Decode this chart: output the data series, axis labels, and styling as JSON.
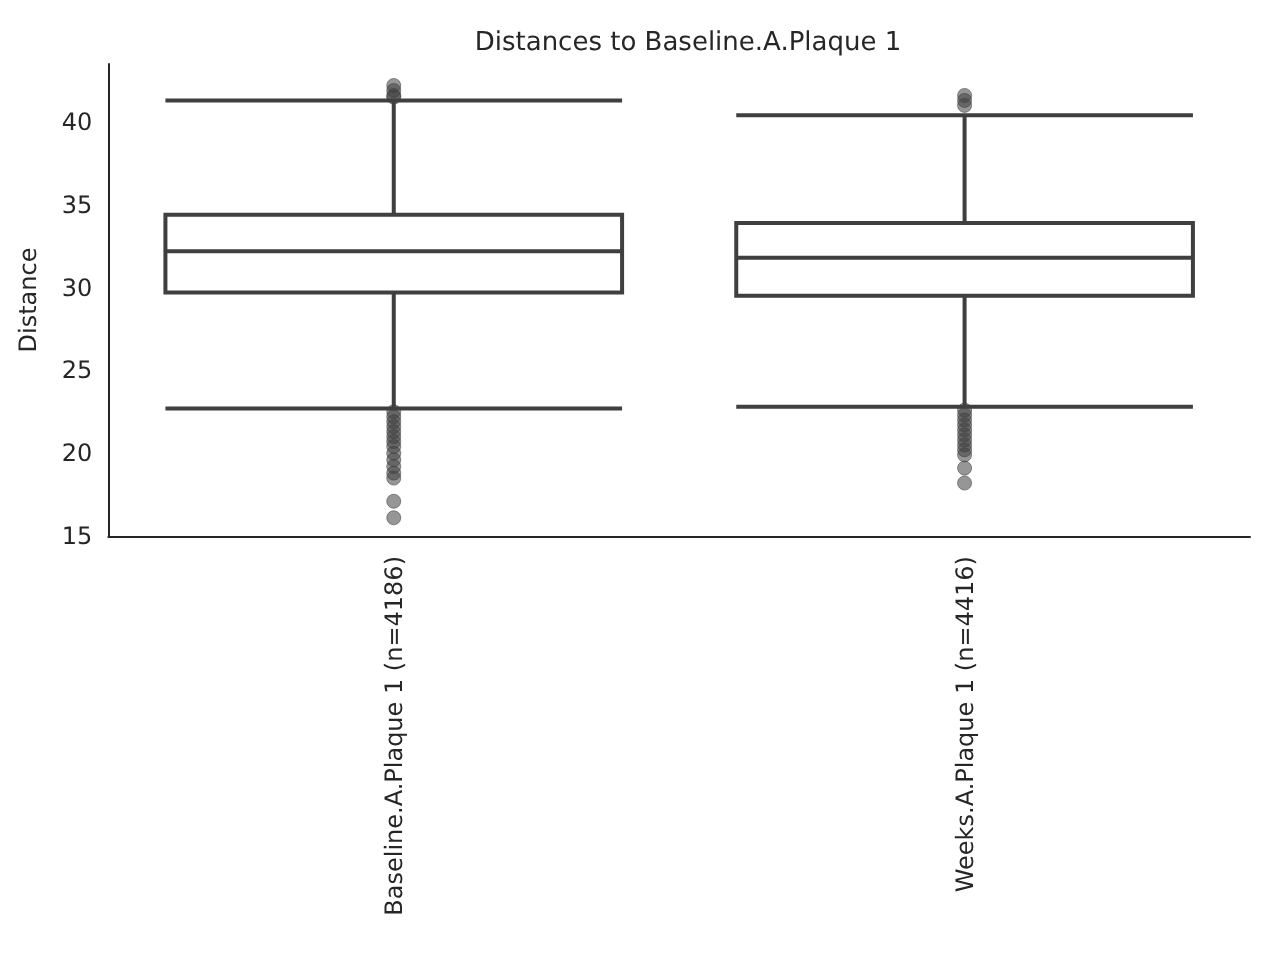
{
  "chart_data": {
    "type": "box",
    "title": "Distances to Baseline.A.Plaque 1",
    "ylabel": "Distance",
    "categories": [
      "Baseline.A.Plaque 1 (n=4186)",
      "Weeks.A.Plaque 1 (n=4416)"
    ],
    "color": "#3f3f3f",
    "boxes": [
      {
        "low": 22.7,
        "q1": 29.7,
        "median": 32.2,
        "q3": 34.4,
        "high": 41.3,
        "outliers": [
          42.2,
          41.9,
          41.6,
          41.5,
          22.5,
          22.2,
          21.9,
          21.6,
          21.3,
          21.0,
          20.7,
          20.4,
          20.0,
          19.6,
          19.2,
          18.8,
          18.5,
          17.1,
          16.1
        ]
      },
      {
        "low": 22.8,
        "q1": 29.5,
        "median": 31.8,
        "q3": 33.9,
        "high": 40.4,
        "outliers": [
          41.6,
          41.3,
          41.0,
          22.6,
          22.3,
          22.0,
          21.7,
          21.4,
          21.1,
          20.8,
          20.5,
          20.2,
          19.9,
          19.1,
          18.2
        ]
      }
    ],
    "ylim": [
      15,
      43.5
    ],
    "yticks": [
      15,
      20,
      25,
      30,
      35,
      40
    ]
  }
}
